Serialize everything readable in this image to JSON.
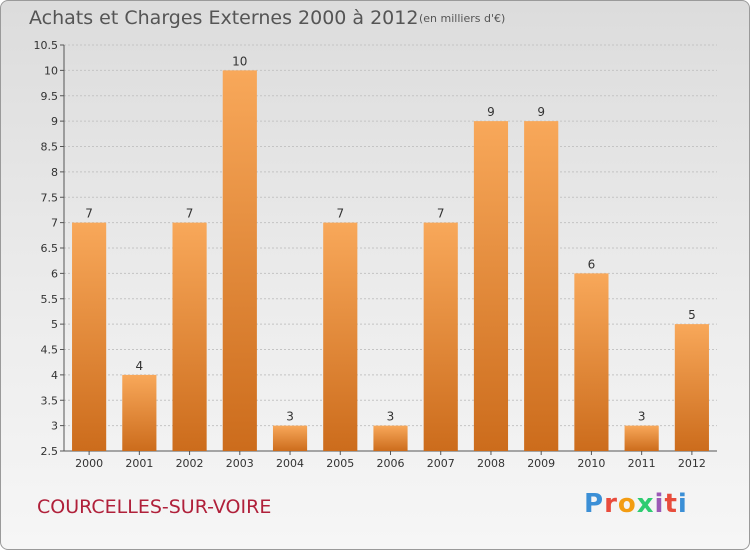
{
  "header": {
    "title": "Achats et Charges Externes 2000 à 2012",
    "subtitle": "(en milliers d'€)"
  },
  "footer": {
    "commune": "COURCELLES-SUR-VOIRE",
    "logo": "Proxiti"
  },
  "colors": {
    "bar_top": "#f8a85a",
    "bar_bottom": "#cc6c1c",
    "title": "#555555",
    "commune": "#b0203a",
    "logo_letters": [
      "#3b8fd6",
      "#e94b3c",
      "#f39c12",
      "#2ecc71",
      "#9b59b6",
      "#e74c3c",
      "#3b8fd6"
    ]
  },
  "chart_data": {
    "type": "bar",
    "categories": [
      "2000",
      "2001",
      "2002",
      "2003",
      "2004",
      "2005",
      "2006",
      "2007",
      "2008",
      "2009",
      "2010",
      "2011",
      "2012"
    ],
    "values": [
      7,
      4,
      7,
      10,
      3,
      7,
      3,
      7,
      9,
      9,
      6,
      3,
      5
    ],
    "ylim": [
      2.5,
      10.5
    ],
    "yticks": [
      "2.5",
      "3",
      "3.5",
      "4",
      "4.5",
      "5",
      "5.5",
      "6",
      "6.5",
      "7",
      "7.5",
      "8",
      "8.5",
      "9",
      "9.5",
      "10",
      "10.5"
    ],
    "grid": true,
    "data_labels": true
  }
}
